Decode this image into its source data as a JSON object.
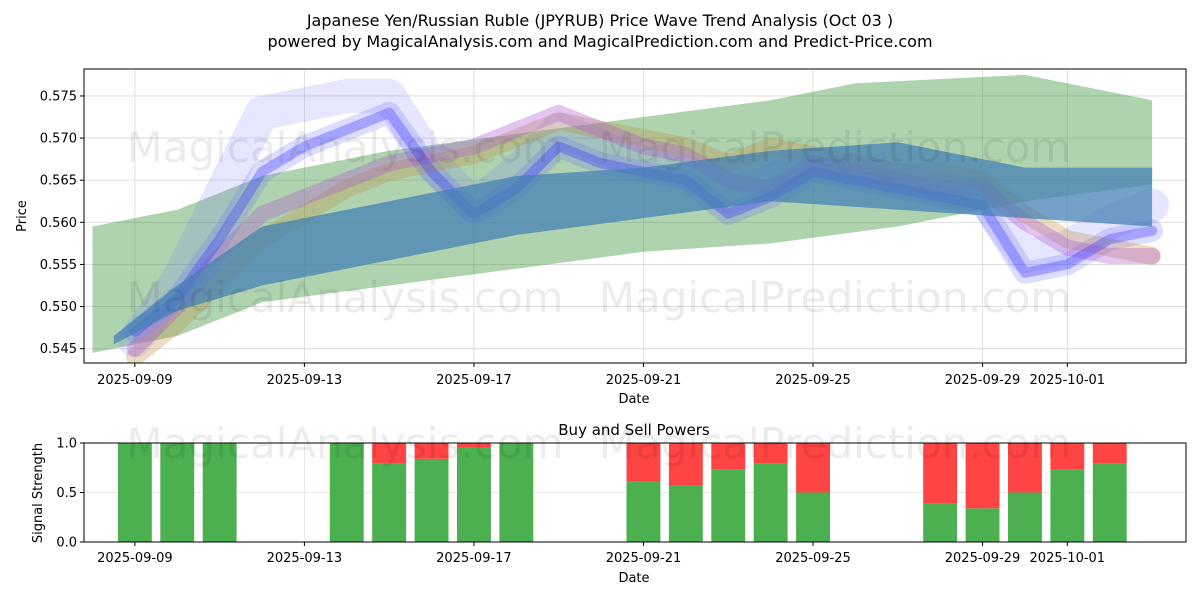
{
  "title_line1": "Japanese Yen/Russian Ruble (JPYRUB) Price Wave Trend Analysis (Oct 03 )",
  "title_line2": "powered by MagicalAnalysis.com and MagicalPrediction.com and Predict-Price.com",
  "watermarks": [
    "MagicalAnalysis.com",
    "MagicalPrediction.com"
  ],
  "colors": {
    "green": "#4CAF50",
    "red": "#FF4444",
    "blue": "#0000FF",
    "green_band": "#2E8B2E",
    "steel": "#4682B4"
  },
  "chart_data": [
    {
      "type": "area",
      "title": "",
      "xlabel": "Date",
      "ylabel": "Price",
      "ylim": [
        0.5433,
        0.5782
      ],
      "xlim_days": [
        -1.2,
        24.8
      ],
      "x_ticks": [
        "2025-09-09",
        "2025-09-13",
        "2025-09-17",
        "2025-09-21",
        "2025-09-25",
        "2025-09-29",
        "2025-10-01"
      ],
      "x_tick_days": [
        0,
        4,
        8,
        12,
        16,
        20,
        22
      ],
      "y_ticks": [
        0.545,
        0.55,
        0.555,
        0.56,
        0.565,
        0.57,
        0.575
      ],
      "grid": true,
      "series": [
        {
          "name": "green-upper-band",
          "x": [
            -1,
            1,
            3,
            6,
            9,
            12,
            15,
            17,
            21,
            24
          ],
          "values": [
            0.5595,
            0.5615,
            0.5655,
            0.5685,
            0.5705,
            0.5725,
            0.5745,
            0.5765,
            0.5775,
            0.5745
          ]
        },
        {
          "name": "green-lower-band",
          "x": [
            -1,
            1,
            3,
            6,
            9,
            12,
            15,
            18,
            21,
            24
          ],
          "values": [
            0.5445,
            0.5465,
            0.5505,
            0.5525,
            0.5545,
            0.5565,
            0.5575,
            0.5595,
            0.5625,
            0.5645
          ]
        },
        {
          "name": "steel-upper-band",
          "x": [
            -0.5,
            1,
            3,
            6,
            9,
            12,
            15,
            18,
            21,
            24
          ],
          "values": [
            0.5465,
            0.5525,
            0.5595,
            0.5625,
            0.5655,
            0.5665,
            0.5685,
            0.5695,
            0.5665,
            0.5665
          ]
        },
        {
          "name": "steel-lower-band",
          "x": [
            -0.5,
            1,
            3,
            6,
            9,
            12,
            15,
            18,
            21,
            24
          ],
          "values": [
            0.5455,
            0.5495,
            0.5525,
            0.5555,
            0.5585,
            0.5605,
            0.5625,
            0.5615,
            0.5605,
            0.5595
          ]
        },
        {
          "name": "blue-wave-1",
          "x": [
            0,
            1,
            2,
            3,
            4,
            5,
            6,
            7,
            8,
            9,
            10,
            11,
            12,
            13,
            14,
            15,
            16,
            17,
            18,
            19,
            20,
            21,
            22,
            23,
            24
          ],
          "values": [
            0.546,
            0.553,
            0.563,
            0.573,
            0.574,
            0.575,
            0.575,
            0.567,
            0.562,
            0.566,
            0.571,
            0.569,
            0.567,
            0.566,
            0.563,
            0.565,
            0.567,
            0.566,
            0.565,
            0.564,
            0.563,
            0.556,
            0.557,
            0.56,
            0.562
          ]
        },
        {
          "name": "blue-wave-2",
          "x": [
            0,
            1,
            2,
            3,
            4,
            5,
            6,
            7,
            8,
            9,
            10,
            11,
            12,
            13,
            14,
            15,
            16,
            17,
            18,
            19,
            20,
            21,
            22,
            23,
            24
          ],
          "values": [
            0.547,
            0.551,
            0.558,
            0.566,
            0.569,
            0.571,
            0.573,
            0.566,
            0.561,
            0.564,
            0.569,
            0.567,
            0.566,
            0.565,
            0.561,
            0.563,
            0.566,
            0.565,
            0.564,
            0.563,
            0.562,
            0.554,
            0.555,
            0.558,
            0.559
          ]
        },
        {
          "name": "purple-wave",
          "x": [
            0,
            1,
            2,
            3,
            4,
            5,
            6,
            7,
            8,
            9,
            10,
            11,
            12,
            13,
            14,
            15,
            16,
            17,
            18,
            19,
            20,
            21,
            22,
            23,
            24
          ],
          "values": [
            0.545,
            0.55,
            0.556,
            0.561,
            0.563,
            0.565,
            0.567,
            0.568,
            0.569,
            0.571,
            0.573,
            0.571,
            0.569,
            0.568,
            0.565,
            0.564,
            0.567,
            0.566,
            0.565,
            0.564,
            0.564,
            0.56,
            0.557,
            0.556,
            0.556
          ]
        },
        {
          "name": "orange-wave",
          "x": [
            0,
            1,
            2,
            3,
            4,
            5,
            6,
            7,
            8,
            9,
            10,
            11,
            12,
            13,
            14,
            15,
            16,
            17,
            18,
            19,
            20,
            21,
            22,
            23,
            24
          ],
          "values": [
            0.544,
            0.548,
            0.553,
            0.558,
            0.561,
            0.564,
            0.566,
            0.567,
            0.568,
            0.57,
            0.572,
            0.571,
            0.57,
            0.569,
            0.567,
            0.569,
            0.568,
            0.567,
            0.566,
            0.566,
            0.565,
            0.561,
            0.558,
            0.557,
            0.556
          ]
        }
      ]
    },
    {
      "type": "bar",
      "title": "Buy and Sell Powers",
      "xlabel": "Date",
      "ylabel": "Signal Strength",
      "ylim": [
        0,
        1
      ],
      "y_ticks": [
        "0.0",
        "0.5",
        "1.0"
      ],
      "x_ticks": [
        "2025-09-09",
        "2025-09-13",
        "2025-09-17",
        "2025-09-21",
        "2025-09-25",
        "2025-09-29",
        "2025-10-01"
      ],
      "x_tick_days": [
        0,
        4,
        8,
        12,
        16,
        20,
        22
      ],
      "xlim_days": [
        -1.2,
        24.8
      ],
      "series": [
        {
          "name": "Buy",
          "color": "#4CAF50"
        },
        {
          "name": "Sell",
          "color": "#FF4444"
        }
      ],
      "bars": [
        {
          "day": 0,
          "buy": 1.0,
          "sell": 0.0
        },
        {
          "day": 1,
          "buy": 1.0,
          "sell": 0.0
        },
        {
          "day": 2,
          "buy": 1.0,
          "sell": 0.0
        },
        {
          "day": 5,
          "buy": 1.0,
          "sell": 0.0
        },
        {
          "day": 6,
          "buy": 0.79,
          "sell": 0.21
        },
        {
          "day": 7,
          "buy": 0.84,
          "sell": 0.16
        },
        {
          "day": 8,
          "buy": 0.95,
          "sell": 0.05
        },
        {
          "day": 9,
          "buy": 1.0,
          "sell": 0.0
        },
        {
          "day": 12,
          "buy": 0.61,
          "sell": 0.39
        },
        {
          "day": 13,
          "buy": 0.57,
          "sell": 0.43
        },
        {
          "day": 14,
          "buy": 0.73,
          "sell": 0.27
        },
        {
          "day": 15,
          "buy": 0.79,
          "sell": 0.21
        },
        {
          "day": 16,
          "buy": 0.5,
          "sell": 0.5
        },
        {
          "day": 19,
          "buy": 0.39,
          "sell": 0.61
        },
        {
          "day": 20,
          "buy": 0.34,
          "sell": 0.66
        },
        {
          "day": 21,
          "buy": 0.5,
          "sell": 0.5
        },
        {
          "day": 22,
          "buy": 0.73,
          "sell": 0.27
        },
        {
          "day": 23,
          "buy": 0.79,
          "sell": 0.21
        }
      ]
    }
  ]
}
